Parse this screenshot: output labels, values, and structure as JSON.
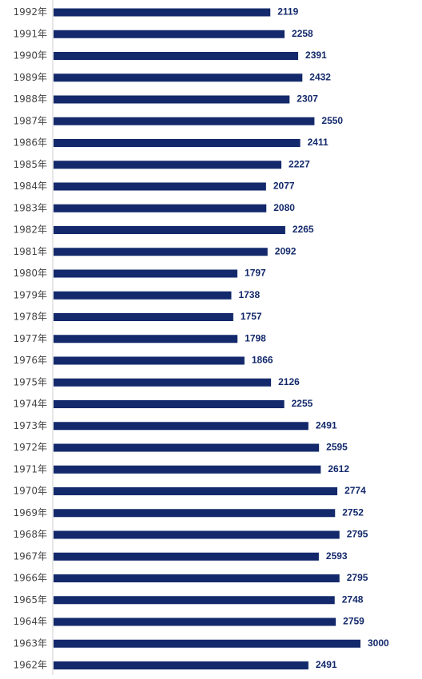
{
  "chart_data": {
    "type": "bar",
    "orientation": "horizontal",
    "categories": [
      "1992年",
      "1991年",
      "1990年",
      "1989年",
      "1988年",
      "1987年",
      "1986年",
      "1985年",
      "1984年",
      "1983年",
      "1982年",
      "1981年",
      "1980年",
      "1979年",
      "1978年",
      "1977年",
      "1976年",
      "1975年",
      "1974年",
      "1973年",
      "1972年",
      "1971年",
      "1970年",
      "1969年",
      "1968年",
      "1967年",
      "1966年",
      "1965年",
      "1964年",
      "1963年",
      "1962年"
    ],
    "values": [
      2119,
      2258,
      2391,
      2432,
      2307,
      2550,
      2411,
      2227,
      2077,
      2080,
      2265,
      2092,
      1797,
      1738,
      1757,
      1798,
      1866,
      2126,
      2255,
      2491,
      2595,
      2612,
      2774,
      2752,
      2795,
      2593,
      2795,
      2748,
      2759,
      3000,
      2491
    ],
    "value_labels": [
      "2119",
      "2258",
      "2391",
      "2432",
      "2307",
      "2550",
      "2411",
      "2227",
      "2077",
      "2080",
      "2265",
      "2092",
      "1797",
      "1738",
      "1757",
      "1798",
      "1866",
      "2126",
      "2255",
      "2491",
      "2595",
      "2612",
      "2774",
      "2752",
      "2795",
      "2593",
      "2795",
      "2748",
      "2759",
      "3000",
      "2491"
    ],
    "title": "",
    "xlabel": "",
    "ylabel": "",
    "xlim": [
      0,
      3000
    ],
    "grid": false,
    "legend": "none",
    "bar_color": "#13296b",
    "label_color": "#13296b",
    "axis_color": "#cccccc"
  }
}
